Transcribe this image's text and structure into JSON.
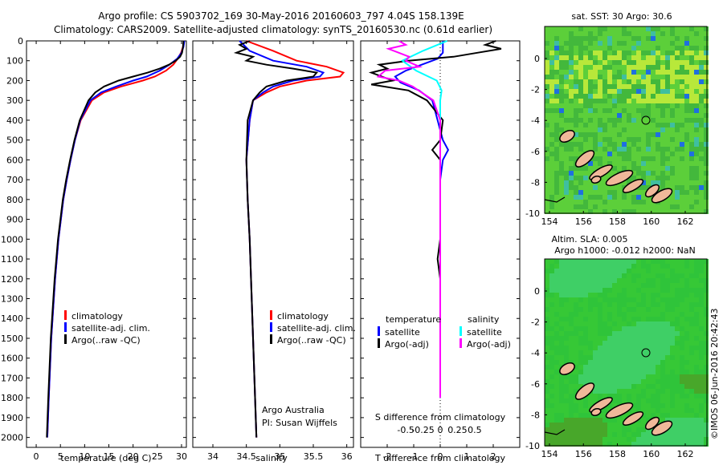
{
  "title_line1": "Argo profile: CS 5903702_169 30-May-2016 20160603_797 4.04S 158.139E",
  "title_line2": "Climatology: CARS2009. Satellite-adjusted climatology: synTS_20160530.nc (0.61d earlier)",
  "colors": {
    "climatology": "#ff0000",
    "satellite": "#0000ff",
    "argo": "#000000",
    "sal_satellite": "#00ffff",
    "sal_argo": "#ff00ff"
  },
  "chart_data": [
    {
      "type": "line",
      "xlabel": "temperature (deg C)",
      "ylabel": "",
      "xlim": [
        -2,
        31
      ],
      "ylim": [
        2050,
        0
      ],
      "xticks": [
        0,
        5,
        10,
        15,
        20,
        25,
        30
      ],
      "yticks": [
        0,
        100,
        200,
        300,
        400,
        500,
        600,
        700,
        800,
        900,
        1000,
        1100,
        1200,
        1300,
        1400,
        1500,
        1600,
        1700,
        1800,
        1900,
        2000
      ],
      "legend": {
        "placement": "bottom-left",
        "entries": [
          "climatology",
          "satellite-adj. clim.",
          "Argo(..raw -QC)"
        ]
      },
      "series": [
        {
          "name": "climatology",
          "y": [
            0,
            30,
            60,
            90,
            120,
            150,
            180,
            200,
            230,
            260,
            300,
            400,
            500,
            600,
            700,
            800,
            1000,
            1200,
            1500,
            1800,
            2000
          ],
          "values": [
            30.5,
            30.3,
            29.9,
            29.2,
            28.3,
            26.8,
            24.5,
            22,
            17.5,
            14,
            11.5,
            9.2,
            8.0,
            7.1,
            6.3,
            5.6,
            4.6,
            3.9,
            3.1,
            2.6,
            2.3
          ]
        },
        {
          "name": "satellite-adj. clim.",
          "y": [
            0,
            30,
            60,
            90,
            120,
            150,
            180,
            200,
            230,
            260,
            300,
            400,
            500,
            600,
            700,
            800,
            1000,
            1200,
            1500,
            1800,
            2000
          ],
          "values": [
            30.6,
            30.4,
            30.0,
            29.1,
            27.5,
            25.5,
            22.8,
            20,
            16.5,
            13.4,
            11.2,
            9.1,
            8.0,
            7.1,
            6.3,
            5.6,
            4.6,
            3.9,
            3.1,
            2.6,
            2.3
          ]
        },
        {
          "name": "Argo(..raw -QC)",
          "y": [
            0,
            30,
            60,
            80,
            100,
            120,
            140,
            160,
            180,
            200,
            230,
            260,
            300,
            400,
            500,
            600,
            700,
            800,
            1000,
            1200,
            1500,
            1800,
            2000
          ],
          "values": [
            30.4,
            30.3,
            30.1,
            29.7,
            28.8,
            27.4,
            25.5,
            23,
            20,
            17,
            14,
            12.2,
            10.8,
            9.0,
            7.9,
            7.0,
            6.2,
            5.5,
            4.5,
            3.8,
            3.0,
            2.5,
            2.2
          ]
        }
      ]
    },
    {
      "type": "line",
      "xlabel": "salinity",
      "ylabel": "",
      "xlim": [
        33.7,
        36.1
      ],
      "ylim": [
        2050,
        0
      ],
      "xticks": [
        34,
        34.5,
        35,
        35.5,
        36
      ],
      "legend": {
        "placement": "bottom-right",
        "entries": [
          "climatology",
          "satellite-adj. clim.",
          "Argo(..raw -QC)"
        ]
      },
      "annotations": [
        "Argo Australia",
        "PI: Susan Wijffels"
      ],
      "series": [
        {
          "name": "climatology",
          "y": [
            0,
            50,
            100,
            130,
            160,
            180,
            200,
            230,
            260,
            300,
            400,
            600,
            800,
            1000,
            1500,
            2000
          ],
          "values": [
            34.5,
            34.9,
            35.25,
            35.7,
            35.95,
            35.9,
            35.4,
            35.0,
            34.8,
            34.6,
            34.55,
            34.5,
            34.52,
            34.55,
            34.6,
            34.65
          ]
        },
        {
          "name": "satellite-adj. clim.",
          "y": [
            0,
            50,
            100,
            130,
            160,
            180,
            200,
            230,
            260,
            300,
            400,
            600,
            800,
            1000,
            1500,
            2000
          ],
          "values": [
            34.4,
            34.55,
            34.9,
            35.4,
            35.65,
            35.6,
            35.2,
            34.9,
            34.75,
            34.6,
            34.55,
            34.5,
            34.52,
            34.55,
            34.6,
            34.65
          ]
        },
        {
          "name": "Argo(..raw -QC)",
          "y": [
            0,
            20,
            40,
            60,
            80,
            100,
            120,
            140,
            160,
            180,
            200,
            230,
            260,
            300,
            400,
            600,
            800,
            1000,
            1500,
            2000
          ],
          "values": [
            34.55,
            34.4,
            34.5,
            34.35,
            34.6,
            34.5,
            34.8,
            35.2,
            35.55,
            35.5,
            35.1,
            34.8,
            34.7,
            34.6,
            34.52,
            34.5,
            34.52,
            34.55,
            34.6,
            34.65
          ]
        }
      ]
    },
    {
      "type": "line",
      "xlabel": "T difference from climatology",
      "xlabel_top": "S difference from climatology",
      "xlim": [
        -3,
        3
      ],
      "ylim": [
        2050,
        0
      ],
      "xticks": [
        -2,
        -1,
        0,
        1,
        2
      ],
      "xticks_top": [
        -0.5,
        -0.25,
        0,
        0.25,
        0.5
      ],
      "legend": {
        "placement": "bottom",
        "groups": [
          "temperature",
          "salinity"
        ],
        "entries": [
          "satellite",
          "Argo(-adj)",
          "satellite",
          "Argo(-adj)"
        ]
      },
      "series": [
        {
          "name": "temperature satellite",
          "y": [
            0,
            30,
            60,
            90,
            120,
            150,
            180,
            210,
            250,
            300,
            400,
            500,
            550,
            600,
            700,
            800,
            1000,
            1200,
            1500,
            1800
          ],
          "values": [
            0.1,
            0.1,
            0.1,
            -0.1,
            -0.7,
            -1.3,
            -1.7,
            -1.5,
            -0.8,
            -0.3,
            -0.1,
            0.1,
            0.3,
            0.1,
            0,
            0,
            0,
            0,
            0,
            0
          ]
        },
        {
          "name": "temperature Argo(-adj)",
          "y": [
            0,
            20,
            40,
            60,
            80,
            100,
            120,
            140,
            160,
            180,
            200,
            220,
            250,
            300,
            400,
            500,
            550,
            600,
            700,
            800,
            1000,
            1100,
            1200,
            1500,
            1800
          ],
          "values": [
            2.1,
            1.7,
            2.3,
            1.4,
            0.5,
            -1.2,
            -2.3,
            -2.0,
            -2.6,
            -2.2,
            -1.8,
            -2.6,
            -1.2,
            -0.5,
            0.1,
            0,
            -0.3,
            0,
            0,
            0,
            0,
            -0.1,
            0,
            0,
            0
          ]
        },
        {
          "name": "salinity satellite",
          "y": [
            0,
            50,
            100,
            150,
            200,
            250,
            300,
            400,
            600,
            800,
            1000,
            1200,
            1500,
            1800
          ],
          "values": [
            0.1,
            -0.25,
            -0.55,
            -0.35,
            -0.05,
            0.02,
            0,
            0,
            0,
            0,
            0,
            0,
            0,
            0
          ]
        },
        {
          "name": "salinity Argo(-adj)",
          "y": [
            0,
            20,
            40,
            60,
            80,
            100,
            130,
            150,
            180,
            200,
            230,
            300,
            400,
            600,
            1000,
            1500,
            1800
          ],
          "values": [
            -0.6,
            -0.5,
            -0.75,
            -0.6,
            -0.45,
            -0.5,
            -0.3,
            -0.8,
            -0.9,
            -0.6,
            -0.4,
            -0.1,
            0,
            0,
            0,
            0,
            0
          ]
        }
      ]
    }
  ],
  "map1": {
    "title": "sat. SST: 30 Argo: 30.6",
    "xticks": [
      "154",
      "156",
      "158",
      "160",
      "162"
    ],
    "yticks": [
      "0",
      "-2",
      "-4",
      "-6",
      "-8",
      "-10"
    ],
    "base_color": "#4fc63a",
    "float_marker_color": "#2a9a2a"
  },
  "map2": {
    "title_line1": "Altim. SLA: 0.005",
    "title_line2": "Argo h1000: -0.012 h2000: NaN",
    "xticks": [
      "154",
      "156",
      "158",
      "160",
      "162"
    ],
    "yticks": [
      "0",
      "-2",
      "-4",
      "-6",
      "-8",
      "-10"
    ],
    "base_color": "#33cc33"
  },
  "land_color": "#f0b89a",
  "credit": "©IMOS 06-Jun-2016 20:42:43"
}
